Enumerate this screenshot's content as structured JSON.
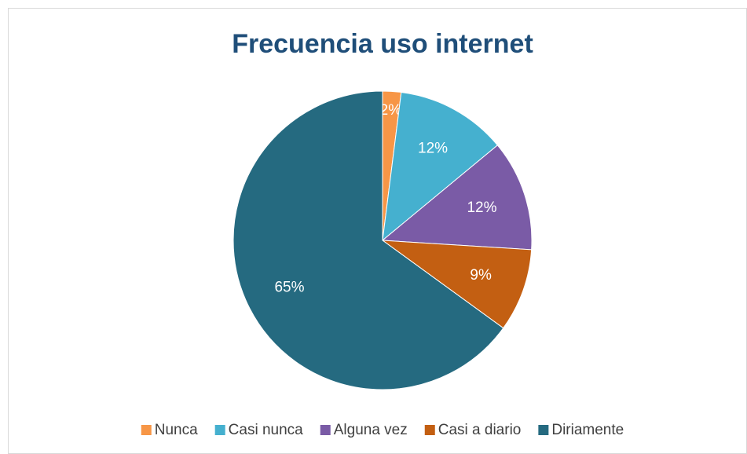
{
  "chart_data": {
    "type": "pie",
    "title": "Frecuencia uso internet",
    "categories": [
      "Nunca",
      "Casi nunca",
      "Alguna vez",
      "Casi a diario",
      "Diriamente"
    ],
    "values": [
      2,
      12,
      12,
      9,
      65
    ],
    "value_labels": [
      "2%",
      "12%",
      "12%",
      "9%",
      "65%"
    ],
    "colors": [
      "#f79646",
      "#45b0cf",
      "#7a5ba6",
      "#c35f12",
      "#256a80"
    ],
    "legend": "bottom"
  }
}
